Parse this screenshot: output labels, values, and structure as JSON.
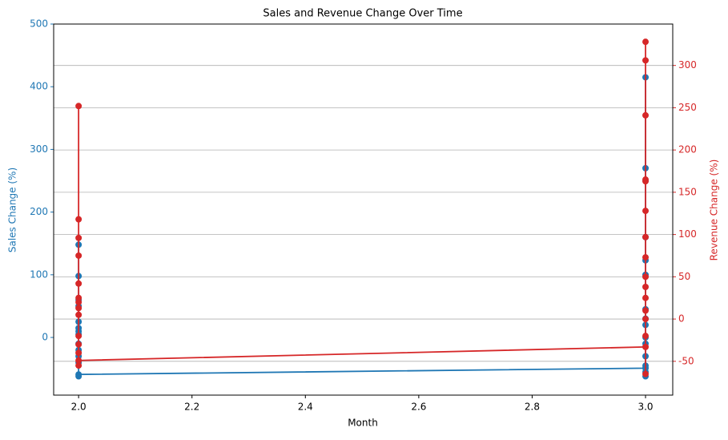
{
  "chart_data": {
    "type": "line",
    "title": "Sales and Revenue Change Over Time",
    "x_label": "Month",
    "y_label": "Sales Change (%)",
    "y2_label": "Revenue Change (%)",
    "x": [
      2,
      2,
      2,
      2,
      2,
      2,
      2,
      2,
      2,
      2,
      2,
      2,
      2,
      2,
      3,
      3,
      3,
      3,
      3,
      3,
      3,
      3,
      3,
      3,
      3,
      3,
      3,
      3,
      3,
      3
    ],
    "series": [
      {
        "name": "Sales Change (%)",
        "color": "#1f77b4",
        "axis": "y",
        "values": [
          10,
          148,
          -20,
          98,
          50,
          -40,
          25,
          -62,
          15,
          -10,
          60,
          -30,
          5,
          -59,
          -49,
          415,
          20,
          270,
          -30,
          250,
          160,
          -55,
          123,
          45,
          0,
          -62,
          30,
          100,
          -10,
          -45
        ]
      },
      {
        "name": "Revenue Change (%)",
        "color": "#d62728",
        "axis": "y2",
        "values": [
          20,
          252,
          -30,
          118,
          42,
          96,
          -55,
          75,
          25,
          -20,
          13,
          5,
          -40,
          -49,
          -33,
          328,
          10,
          306,
          -65,
          241,
          165,
          163,
          -20,
          128,
          97,
          73,
          50,
          38,
          25,
          0
        ]
      }
    ],
    "xlim": [
      1.956,
      3.048
    ],
    "xticks": [
      {
        "value": 2,
        "label": "2.0"
      },
      {
        "value": 2.2,
        "label": "2.2"
      },
      {
        "value": 2.4,
        "label": "2.4"
      },
      {
        "value": 2.6,
        "label": "2.6"
      },
      {
        "value": 2.8,
        "label": "2.8"
      },
      {
        "value": 3,
        "label": "3.0"
      }
    ],
    "ylim": [
      -92,
      500
    ],
    "yticks": [
      0,
      100,
      200,
      300,
      400,
      500
    ],
    "y2lim": [
      -90,
      349
    ],
    "y2ticks": [
      -50,
      0,
      50,
      100,
      150,
      200,
      250,
      300
    ],
    "grid": "y2"
  }
}
